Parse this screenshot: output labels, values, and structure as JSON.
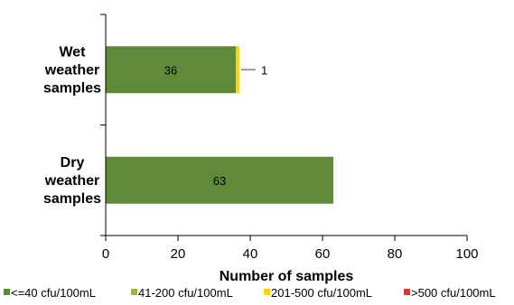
{
  "chart_data": {
    "type": "bar",
    "orientation": "horizontal",
    "stacked": true,
    "title": "",
    "xlabel": "Number of samples",
    "ylabel": "",
    "xlim": [
      0,
      100
    ],
    "xticks": [
      0,
      20,
      40,
      60,
      80,
      100
    ],
    "grid": false,
    "legend_position": "bottom",
    "categories": [
      {
        "label_lines": [
          "Wet",
          "weather",
          "samples"
        ]
      },
      {
        "label_lines": [
          "Dry",
          "weather",
          "samples"
        ]
      }
    ],
    "series": [
      {
        "name": "<=40 cfu/100mL",
        "color": "#5e8a3a",
        "values": [
          36,
          63
        ]
      },
      {
        "name": "41-200 cfu/100mL",
        "color": "#9bbb3b",
        "values": [
          0,
          0
        ]
      },
      {
        "name": "201-500 cfu/100mL",
        "color": "#ffd020",
        "values": [
          1,
          0
        ]
      },
      {
        "name": ">500 cfu/100mL",
        "color": "#e8352a",
        "values": [
          0,
          0
        ]
      }
    ],
    "data_labels": [
      {
        "category": 0,
        "series": 0,
        "text": "36"
      },
      {
        "category": 0,
        "series": 2,
        "text": "1",
        "callout": true
      },
      {
        "category": 1,
        "series": 0,
        "text": "63"
      }
    ]
  }
}
